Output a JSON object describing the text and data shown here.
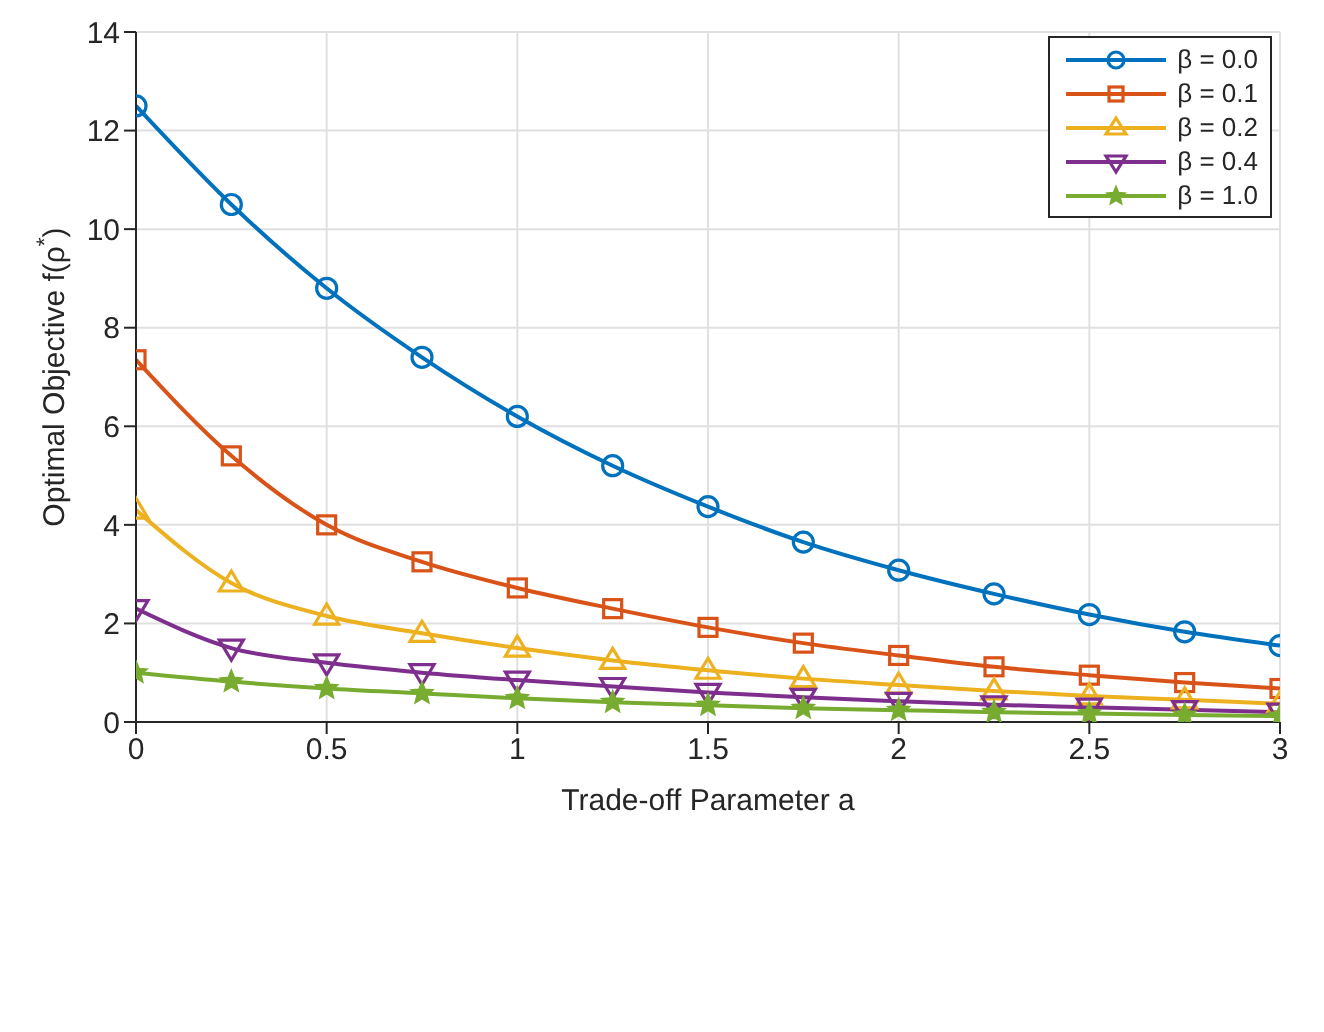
{
  "chart_data": {
    "type": "line",
    "xlabel": "Trade-off Parameter a",
    "ylabel": "Optimal Objective f(ρ$^{*}$)",
    "x": [
      0,
      0.25,
      0.5,
      0.75,
      1,
      1.25,
      1.5,
      1.75,
      2,
      2.25,
      2.5,
      2.75,
      3
    ],
    "xlim": [
      0,
      3
    ],
    "xticks": [
      0,
      0.5,
      1,
      1.5,
      2,
      2.5,
      3
    ],
    "ylim": [
      0,
      14
    ],
    "yticks": [
      0,
      2,
      4,
      6,
      8,
      10,
      12,
      14
    ],
    "grid": true,
    "legend": "top right",
    "line_style": "solid",
    "series": [
      {
        "name": "β = 0.0",
        "color": "#0072bd",
        "marker": "circle",
        "values": [
          12.5,
          10.5,
          8.8,
          7.4,
          6.2,
          5.2,
          4.37,
          3.65,
          3.08,
          2.6,
          2.18,
          1.83,
          1.55
        ]
      },
      {
        "name": "β = 0.1",
        "color": "#d95319",
        "marker": "square",
        "values": [
          7.35,
          5.4,
          4.0,
          3.25,
          2.72,
          2.3,
          1.92,
          1.6,
          1.35,
          1.12,
          0.95,
          0.8,
          0.68
        ]
      },
      {
        "name": "β = 0.2",
        "color": "#edb120",
        "marker": "triangle",
        "values": [
          4.3,
          2.82,
          2.15,
          1.8,
          1.5,
          1.25,
          1.05,
          0.88,
          0.75,
          0.63,
          0.53,
          0.45,
          0.37
        ]
      },
      {
        "name": "β = 0.4",
        "color": "#7e2f8e",
        "marker": "triangle-down",
        "values": [
          2.3,
          1.5,
          1.2,
          1.0,
          0.85,
          0.72,
          0.6,
          0.5,
          0.42,
          0.35,
          0.3,
          0.25,
          0.2
        ]
      },
      {
        "name": "β = 1.0",
        "color": "#77ac30",
        "marker": "star",
        "values": [
          1.0,
          0.82,
          0.68,
          0.58,
          0.48,
          0.4,
          0.34,
          0.28,
          0.24,
          0.2,
          0.17,
          0.14,
          0.12
        ]
      }
    ]
  }
}
